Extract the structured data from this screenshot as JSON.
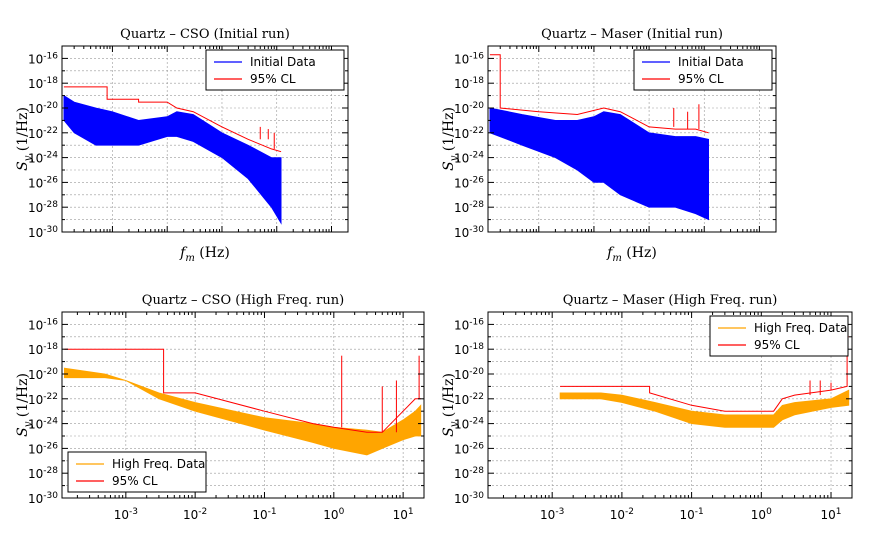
{
  "chart_data": [
    {
      "type": "line",
      "title": "Quartz – CSO (Initial run)",
      "xlabel": "f_m (Hz)",
      "ylabel": "S_y (1/Hz)",
      "x_scale": "log",
      "y_scale": "log",
      "xlim": [
        0.00012,
        20
      ],
      "ylim": [
        1e-30,
        1e-15
      ],
      "grid": true,
      "show_x_ticklabels": false,
      "legend_position": "upper right",
      "series": [
        {
          "name": "Initial Data",
          "color": "#0000ff",
          "band": true,
          "x": [
            0.00013,
            0.0002,
            0.0005,
            0.001,
            0.003,
            0.01,
            0.015,
            0.03,
            0.1,
            0.3,
            0.8,
            1.2
          ],
          "y_low": [
            1e-21,
            1e-22,
            1e-23,
            1e-23,
            1e-23,
            5e-23,
            5e-23,
            2e-23,
            1e-24,
            2e-26,
            1e-28,
            5e-30
          ],
          "y_high": [
            1e-19,
            3e-20,
            1e-20,
            5e-21,
            1e-21,
            2e-21,
            5e-21,
            3e-21,
            1e-22,
            1e-23,
            1e-24,
            1e-24
          ]
        },
        {
          "name": "95% CL",
          "color": "#ff0000",
          "x": [
            0.00013,
            0.0008,
            0.0008,
            0.003,
            0.003,
            0.01,
            0.015,
            0.03,
            0.1,
            0.3,
            0.8,
            1.2
          ],
          "y": [
            5e-19,
            5e-19,
            5e-20,
            5e-20,
            3e-20,
            3e-20,
            1e-20,
            5e-21,
            3e-22,
            3e-23,
            5e-24,
            3e-24
          ],
          "spikes": [
            [
              0.5,
              3e-22
            ],
            [
              0.7,
              2e-22
            ],
            [
              0.9,
              1e-22
            ]
          ]
        }
      ]
    },
    {
      "type": "line",
      "title": "Quartz – Maser (Initial run)",
      "xlabel": "f_m (Hz)",
      "ylabel": "S_y (1/Hz)",
      "x_scale": "log",
      "y_scale": "log",
      "xlim": [
        0.00012,
        20
      ],
      "ylim": [
        1e-30,
        1e-15
      ],
      "grid": true,
      "show_x_ticklabels": false,
      "legend_position": "upper right",
      "series": [
        {
          "name": "Initial Data",
          "color": "#0000ff",
          "band": true,
          "x": [
            0.00013,
            0.0005,
            0.002,
            0.005,
            0.01,
            0.015,
            0.03,
            0.1,
            0.3,
            0.7,
            1.2
          ],
          "y_low": [
            1e-22,
            1e-23,
            1e-24,
            1e-25,
            1e-26,
            1e-26,
            1e-27,
            1e-28,
            1e-28,
            3e-29,
            1e-29
          ],
          "y_high": [
            1e-20,
            3e-21,
            1e-21,
            1e-21,
            2e-21,
            5e-21,
            3e-21,
            1e-22,
            5e-23,
            5e-23,
            3e-23
          ]
        },
        {
          "name": "95% CL",
          "color": "#ff0000",
          "x": [
            0.00013,
            0.0002,
            0.0002,
            0.001,
            0.005,
            0.015,
            0.03,
            0.1,
            0.3,
            0.7,
            1.2
          ],
          "y": [
            2e-16,
            2e-16,
            1e-20,
            5e-21,
            3e-21,
            1e-20,
            5e-21,
            3e-22,
            2e-22,
            2e-22,
            1e-22
          ],
          "spikes": [
            [
              0.28,
              1e-20
            ],
            [
              0.5,
              5e-21
            ],
            [
              0.8,
              2e-20
            ]
          ]
        }
      ]
    },
    {
      "type": "line",
      "title": "Quartz – CSO (High Freq. run)",
      "xlabel": "",
      "ylabel": "S_y (1/Hz)",
      "x_scale": "log",
      "y_scale": "log",
      "xlim": [
        0.00012,
        20
      ],
      "ylim": [
        1e-30,
        1e-15
      ],
      "grid": true,
      "show_x_ticklabels": true,
      "x_ticks": [
        "10-3",
        "10-2",
        "10-1",
        "100",
        "101"
      ],
      "legend_position": "lower left",
      "series": [
        {
          "name": "High Freq. Data",
          "color": "#ffa500",
          "band": true,
          "x": [
            0.00013,
            0.0005,
            0.001,
            0.003,
            0.01,
            0.1,
            0.5,
            1,
            3,
            5,
            10,
            15,
            18
          ],
          "y_low": [
            5e-21,
            5e-21,
            3e-21,
            1e-22,
            1e-23,
            3e-25,
            3e-26,
            1e-26,
            3e-27,
            1e-26,
            5e-26,
            1e-25,
            1e-25
          ],
          "y_high": [
            3e-20,
            1e-20,
            3e-21,
            3e-22,
            5e-23,
            3e-24,
            1e-24,
            5e-25,
            3e-25,
            2e-25,
            2e-24,
            1e-23,
            3e-23
          ]
        },
        {
          "name": "95% CL",
          "color": "#ff0000",
          "x": [
            0.00013,
            0.0035,
            0.0035,
            0.01,
            0.1,
            0.5,
            1,
            3,
            5,
            10,
            15,
            18
          ],
          "y": [
            1e-18,
            1e-18,
            3e-22,
            3e-22,
            1e-23,
            1e-24,
            5e-25,
            2e-25,
            2e-25,
            1e-23,
            1e-22,
            1e-22
          ],
          "spikes": [
            [
              1.3,
              3e-19
            ],
            [
              5,
              1e-21
            ],
            [
              8,
              3e-21
            ],
            [
              17,
              3e-19
            ]
          ]
        }
      ]
    },
    {
      "type": "line",
      "title": "Quartz – Maser (High Freq. run)",
      "xlabel": "",
      "ylabel": "S_y (1/Hz)",
      "x_scale": "log",
      "y_scale": "log",
      "xlim": [
        0.00012,
        20
      ],
      "ylim": [
        1e-30,
        1e-15
      ],
      "grid": true,
      "show_x_ticklabels": true,
      "x_ticks": [
        "10-3",
        "10-2",
        "10-1",
        "100",
        "101"
      ],
      "legend_position": "upper right",
      "series": [
        {
          "name": "High Freq. Data",
          "color": "#ffa500",
          "band": true,
          "x": [
            0.0013,
            0.005,
            0.01,
            0.03,
            0.1,
            0.3,
            1,
            1.5,
            2,
            3,
            10,
            18
          ],
          "y_low": [
            1e-22,
            1e-22,
            5e-23,
            1e-23,
            1e-24,
            5e-25,
            5e-25,
            5e-25,
            2e-24,
            5e-24,
            2e-23,
            3e-23
          ],
          "y_high": [
            3e-22,
            3e-22,
            2e-22,
            5e-23,
            1e-23,
            5e-24,
            5e-24,
            5e-24,
            3e-23,
            5e-23,
            1e-22,
            5e-22
          ]
        },
        {
          "name": "95% CL",
          "color": "#ff0000",
          "x": [
            0.0013,
            0.025,
            0.025,
            0.1,
            0.3,
            1,
            1.5,
            2,
            3,
            10,
            17,
            17,
            18
          ],
          "y": [
            1e-21,
            1e-21,
            3e-22,
            3e-23,
            1e-23,
            1e-23,
            1e-23,
            1e-22,
            2e-22,
            5e-22,
            1e-21,
            1e-17,
            1e-17
          ],
          "spikes": [
            [
              5,
              3e-21
            ],
            [
              7,
              3e-21
            ],
            [
              10,
              2e-21
            ]
          ]
        }
      ]
    }
  ]
}
